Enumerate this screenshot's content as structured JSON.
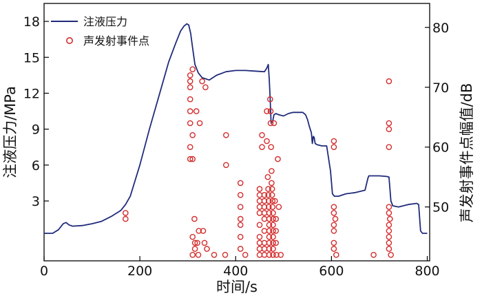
{
  "chart_data": {
    "type": "line+scatter",
    "xlabel": "时间/s",
    "ylabel_left": "注液压力/MPa",
    "ylabel_right": "声发射事件点幅值/dB",
    "xlim": [
      0,
      805
    ],
    "ylim_left": [
      -2,
      19.5
    ],
    "ylim_right": [
      41,
      84
    ],
    "x_ticks": [
      0,
      200,
      400,
      600,
      800
    ],
    "y_ticks_left": [
      3,
      6,
      9,
      12,
      15,
      18
    ],
    "y_ticks_right": [
      50,
      60,
      70,
      80
    ],
    "grid": false,
    "legend_position": "top-left",
    "colors": {
      "line": "#1f2a7a",
      "markers": "#d42c2c"
    },
    "series": [
      {
        "name": "注液压力",
        "type": "line",
        "axis": "left",
        "x": [
          0,
          18,
          30,
          40,
          46,
          52,
          60,
          80,
          100,
          120,
          140,
          160,
          170,
          180,
          200,
          220,
          240,
          260,
          275,
          285,
          292,
          298,
          302,
          306,
          310,
          315,
          322,
          330,
          345,
          360,
          380,
          400,
          420,
          440,
          460,
          465,
          468,
          470,
          472,
          474,
          477,
          480,
          484,
          490,
          500,
          510,
          520,
          530,
          540,
          546,
          550,
          554,
          558,
          560,
          562,
          564,
          566,
          570,
          580,
          590,
          598,
          602,
          606,
          615,
          630,
          650,
          670,
          676,
          678,
          690,
          700,
          715,
          720,
          722,
          724,
          728,
          740,
          760,
          778,
          782,
          786,
          790,
          800
        ],
        "y": [
          0.3,
          0.3,
          0.6,
          1.1,
          1.2,
          1.0,
          0.9,
          0.95,
          1.1,
          1.3,
          1.7,
          2.2,
          2.7,
          3.4,
          6.0,
          9.0,
          11.8,
          14.6,
          16.2,
          17.2,
          17.6,
          17.8,
          17.7,
          17.0,
          15.8,
          14.4,
          13.7,
          13.3,
          13.1,
          13.5,
          13.8,
          13.9,
          13.9,
          13.85,
          13.8,
          14.1,
          14.4,
          13.2,
          11.6,
          9.5,
          9.6,
          10.2,
          10.3,
          10.2,
          10.1,
          10.3,
          10.4,
          10.4,
          10.4,
          10.2,
          9.8,
          9.2,
          8.7,
          7.8,
          8.4,
          8.3,
          7.8,
          7.7,
          7.6,
          7.6,
          5.5,
          3.6,
          3.4,
          3.4,
          3.6,
          3.7,
          3.9,
          4.9,
          5.1,
          5.1,
          5.1,
          5.05,
          5.0,
          4.0,
          3.0,
          2.6,
          2.5,
          2.7,
          2.8,
          2.7,
          0.5,
          0.3,
          0.3
        ]
      },
      {
        "name": "声发射事件点",
        "type": "scatter",
        "axis": "right",
        "points": [
          [
            170,
            49
          ],
          [
            170,
            48
          ],
          [
            305,
            72
          ],
          [
            305,
            71
          ],
          [
            305,
            70
          ],
          [
            305,
            68
          ],
          [
            305,
            66
          ],
          [
            305,
            64
          ],
          [
            305,
            60
          ],
          [
            305,
            58
          ],
          [
            310,
            73
          ],
          [
            310,
            62
          ],
          [
            310,
            58
          ],
          [
            310,
            45
          ],
          [
            310,
            42
          ],
          [
            314,
            48
          ],
          [
            315,
            44
          ],
          [
            315,
            43
          ],
          [
            318,
            66
          ],
          [
            320,
            44
          ],
          [
            322,
            42
          ],
          [
            323,
            46
          ],
          [
            325,
            64
          ],
          [
            330,
            71
          ],
          [
            332,
            46
          ],
          [
            335,
            44
          ],
          [
            337,
            70
          ],
          [
            340,
            43
          ],
          [
            355,
            42
          ],
          [
            380,
            62
          ],
          [
            380,
            57
          ],
          [
            378,
            42
          ],
          [
            410,
            54
          ],
          [
            410,
            52
          ],
          [
            410,
            50
          ],
          [
            410,
            48
          ],
          [
            410,
            47
          ],
          [
            410,
            45
          ],
          [
            410,
            43
          ],
          [
            420,
            42
          ],
          [
            450,
            53
          ],
          [
            450,
            52
          ],
          [
            450,
            51
          ],
          [
            450,
            50
          ],
          [
            450,
            49
          ],
          [
            450,
            47
          ],
          [
            450,
            45
          ],
          [
            450,
            44
          ],
          [
            450,
            43
          ],
          [
            450,
            42
          ],
          [
            455,
            62
          ],
          [
            455,
            60
          ],
          [
            460,
            52
          ],
          [
            460,
            51
          ],
          [
            460,
            50
          ],
          [
            460,
            49
          ],
          [
            460,
            48
          ],
          [
            460,
            46
          ],
          [
            460,
            44
          ],
          [
            460,
            43
          ],
          [
            460,
            42
          ],
          [
            465,
            66
          ],
          [
            465,
            61
          ],
          [
            467,
            55
          ],
          [
            468,
            53
          ],
          [
            468,
            52
          ],
          [
            469,
            51
          ],
          [
            469,
            50
          ],
          [
            470,
            49
          ],
          [
            470,
            48
          ],
          [
            470,
            47
          ],
          [
            470,
            46
          ],
          [
            470,
            45
          ],
          [
            470,
            44
          ],
          [
            470,
            43
          ],
          [
            470,
            42
          ],
          [
            472,
            68
          ],
          [
            473,
            66
          ],
          [
            473,
            64
          ],
          [
            474,
            60
          ],
          [
            475,
            56
          ],
          [
            475,
            54
          ],
          [
            476,
            53
          ],
          [
            476,
            52
          ],
          [
            477,
            51
          ],
          [
            477,
            50
          ],
          [
            478,
            49
          ],
          [
            478,
            48
          ],
          [
            478,
            47
          ],
          [
            478,
            46
          ],
          [
            478,
            45
          ],
          [
            478,
            44
          ],
          [
            478,
            43
          ],
          [
            478,
            42
          ],
          [
            480,
            64
          ],
          [
            482,
            51
          ],
          [
            484,
            48
          ],
          [
            484,
            46
          ],
          [
            484,
            44
          ],
          [
            485,
            42
          ],
          [
            488,
            58
          ],
          [
            494,
            42
          ],
          [
            490,
            50
          ],
          [
            605,
            61
          ],
          [
            605,
            60
          ],
          [
            605,
            50
          ],
          [
            605,
            49
          ],
          [
            605,
            47
          ],
          [
            605,
            46
          ],
          [
            605,
            44
          ],
          [
            605,
            43
          ],
          [
            608,
            48
          ],
          [
            610,
            42
          ],
          [
            688,
            42
          ],
          [
            720,
            71
          ],
          [
            720,
            64
          ],
          [
            720,
            63
          ],
          [
            720,
            60
          ],
          [
            720,
            50
          ],
          [
            720,
            49
          ],
          [
            720,
            47
          ],
          [
            720,
            46
          ],
          [
            720,
            45
          ],
          [
            720,
            44
          ],
          [
            720,
            43
          ],
          [
            722,
            48
          ],
          [
            724,
            42
          ]
        ]
      }
    ]
  }
}
